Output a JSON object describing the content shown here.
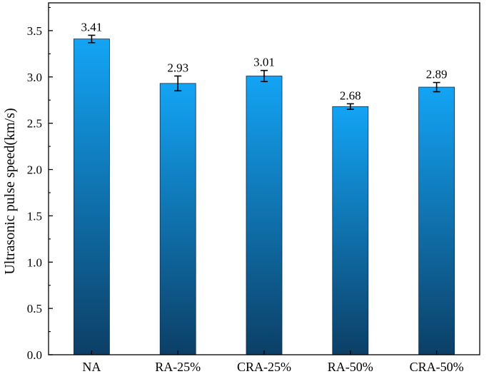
{
  "chart_data": {
    "type": "bar",
    "ylabel": "Ultrasonic pulse speed(km/s)",
    "xlabel": "",
    "categories": [
      "NA",
      "RA-25%",
      "CRA-25%",
      "RA-50%",
      "CRA-50%"
    ],
    "values": [
      3.41,
      2.93,
      3.01,
      2.68,
      2.89
    ],
    "errors": [
      0.04,
      0.08,
      0.06,
      0.03,
      0.05
    ],
    "data_labels": [
      "3.41",
      "2.93",
      "3.01",
      "2.68",
      "2.89"
    ],
    "ylim": [
      0,
      3.8
    ],
    "yticks": [
      0.0,
      0.5,
      1.0,
      1.5,
      2.0,
      2.5,
      3.0,
      3.5
    ],
    "ytick_labels": [
      "0.0",
      "0.5",
      "1.0",
      "1.5",
      "2.0",
      "2.5",
      "3.0",
      "3.5"
    ],
    "grid": false,
    "legend": "none",
    "colors": {
      "bar_top": "#13a4f5",
      "bar_bottom": "#0c3f66",
      "axis": "#000000",
      "error_bar": "#000000"
    }
  }
}
